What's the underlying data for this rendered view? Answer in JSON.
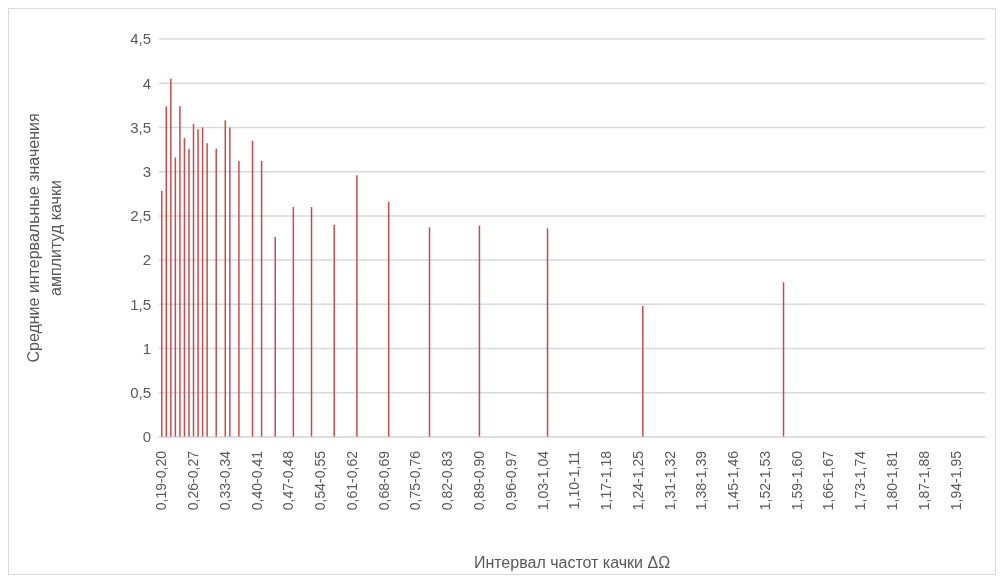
{
  "chart_data": {
    "type": "bar",
    "xlabel": "Интервал частот качки ΔΩ",
    "ylabel": "Средние интервальные значения\nамплитуд качки",
    "color": "#c84b4b",
    "grid": "y",
    "ylim": [
      0,
      4.5
    ],
    "yticks": [
      0,
      {
        "value": 0.5,
        "label": "0,5"
      },
      1,
      {
        "value": 1.5,
        "label": "1,5"
      },
      2,
      {
        "value": 2.5,
        "label": "2,5"
      },
      3,
      {
        "value": 3.5,
        "label": "3,5"
      },
      4,
      {
        "value": 4.5,
        "label": "4,5"
      }
    ],
    "categories": [
      "0,19-0,20",
      null,
      null,
      null,
      null,
      null,
      null,
      "0,26-0,27",
      null,
      null,
      null,
      null,
      null,
      null,
      "0,33-0,34",
      null,
      null,
      null,
      null,
      null,
      null,
      "0,40-0,41",
      null,
      null,
      null,
      null,
      null,
      null,
      "0,47-0,48",
      null,
      null,
      null,
      null,
      null,
      null,
      "0,54-0,55",
      null,
      null,
      null,
      null,
      null,
      null,
      "0,61-0,62",
      null,
      null,
      null,
      null,
      null,
      null,
      "0,68-0,69",
      null,
      null,
      null,
      null,
      null,
      null,
      "0,75-0,76",
      null,
      null,
      null,
      null,
      null,
      null,
      "0,82-0,83",
      null,
      null,
      null,
      null,
      null,
      null,
      "0,89-0,90",
      null,
      null,
      null,
      null,
      null,
      null,
      "0,96-0,97",
      null,
      null,
      null,
      null,
      null,
      null,
      "1,03-1,04",
      null,
      null,
      null,
      null,
      null,
      null,
      "1,10-1,11",
      null,
      null,
      null,
      null,
      null,
      null,
      "1,17-1,18",
      null,
      null,
      null,
      null,
      null,
      null,
      "1,24-1,25",
      null,
      null,
      null,
      null,
      null,
      null,
      "1,31-1,32",
      null,
      null,
      null,
      null,
      null,
      null,
      "1,38-1,39",
      null,
      null,
      null,
      null,
      null,
      null,
      "1,45-1,46",
      null,
      null,
      null,
      null,
      null,
      null,
      "1,52-1,53",
      null,
      null,
      null,
      null,
      null,
      null,
      "1,59-1,60",
      null,
      null,
      null,
      null,
      null,
      null,
      "1,66-1,67",
      null,
      null,
      null,
      null,
      null,
      null,
      "1,73-1,74",
      null,
      null,
      null,
      null,
      null,
      null,
      "1,80-1,81",
      null,
      null,
      null,
      null,
      null,
      null,
      "1,87-1,88",
      null,
      null,
      null,
      null,
      null,
      null,
      "1,94-1,95",
      null,
      null,
      null,
      null,
      null,
      null
    ],
    "values": [
      2.78,
      3.74,
      4.05,
      3.16,
      3.74,
      3.38,
      3.26,
      3.54,
      3.48,
      3.5,
      3.32,
      null,
      3.26,
      null,
      3.58,
      3.5,
      null,
      3.12,
      null,
      null,
      3.35,
      null,
      3.12,
      null,
      null,
      2.26,
      null,
      null,
      null,
      2.6,
      null,
      null,
      null,
      2.6,
      null,
      null,
      null,
      null,
      2.4,
      null,
      null,
      null,
      null,
      2.96,
      null,
      null,
      null,
      null,
      null,
      null,
      2.66,
      null,
      null,
      null,
      null,
      null,
      null,
      null,
      null,
      2.37,
      null,
      null,
      null,
      null,
      null,
      null,
      null,
      null,
      null,
      null,
      2.39,
      null,
      null,
      null,
      null,
      null,
      null,
      null,
      null,
      null,
      null,
      null,
      null,
      null,
      null,
      2.36,
      null,
      null,
      null,
      null,
      null,
      null,
      null,
      null,
      null,
      null,
      null,
      null,
      null,
      null,
      null,
      null,
      null,
      null,
      null,
      null,
      1.48,
      null,
      null,
      null,
      null,
      null,
      null,
      null,
      null,
      null,
      null,
      null,
      null,
      null,
      null,
      null,
      null,
      null,
      null,
      null,
      null,
      null,
      null,
      null,
      null,
      null,
      null,
      null,
      null,
      null,
      null,
      1.75,
      null,
      null,
      null,
      null,
      null,
      null,
      null,
      null,
      null,
      null,
      null,
      null,
      null,
      null,
      null,
      null,
      null,
      null,
      null,
      null,
      null,
      null,
      null,
      null,
      null,
      null,
      null,
      null,
      null,
      null,
      null,
      null,
      null,
      null,
      null,
      null,
      null,
      null,
      null,
      null,
      null,
      null,
      null,
      null
    ]
  }
}
